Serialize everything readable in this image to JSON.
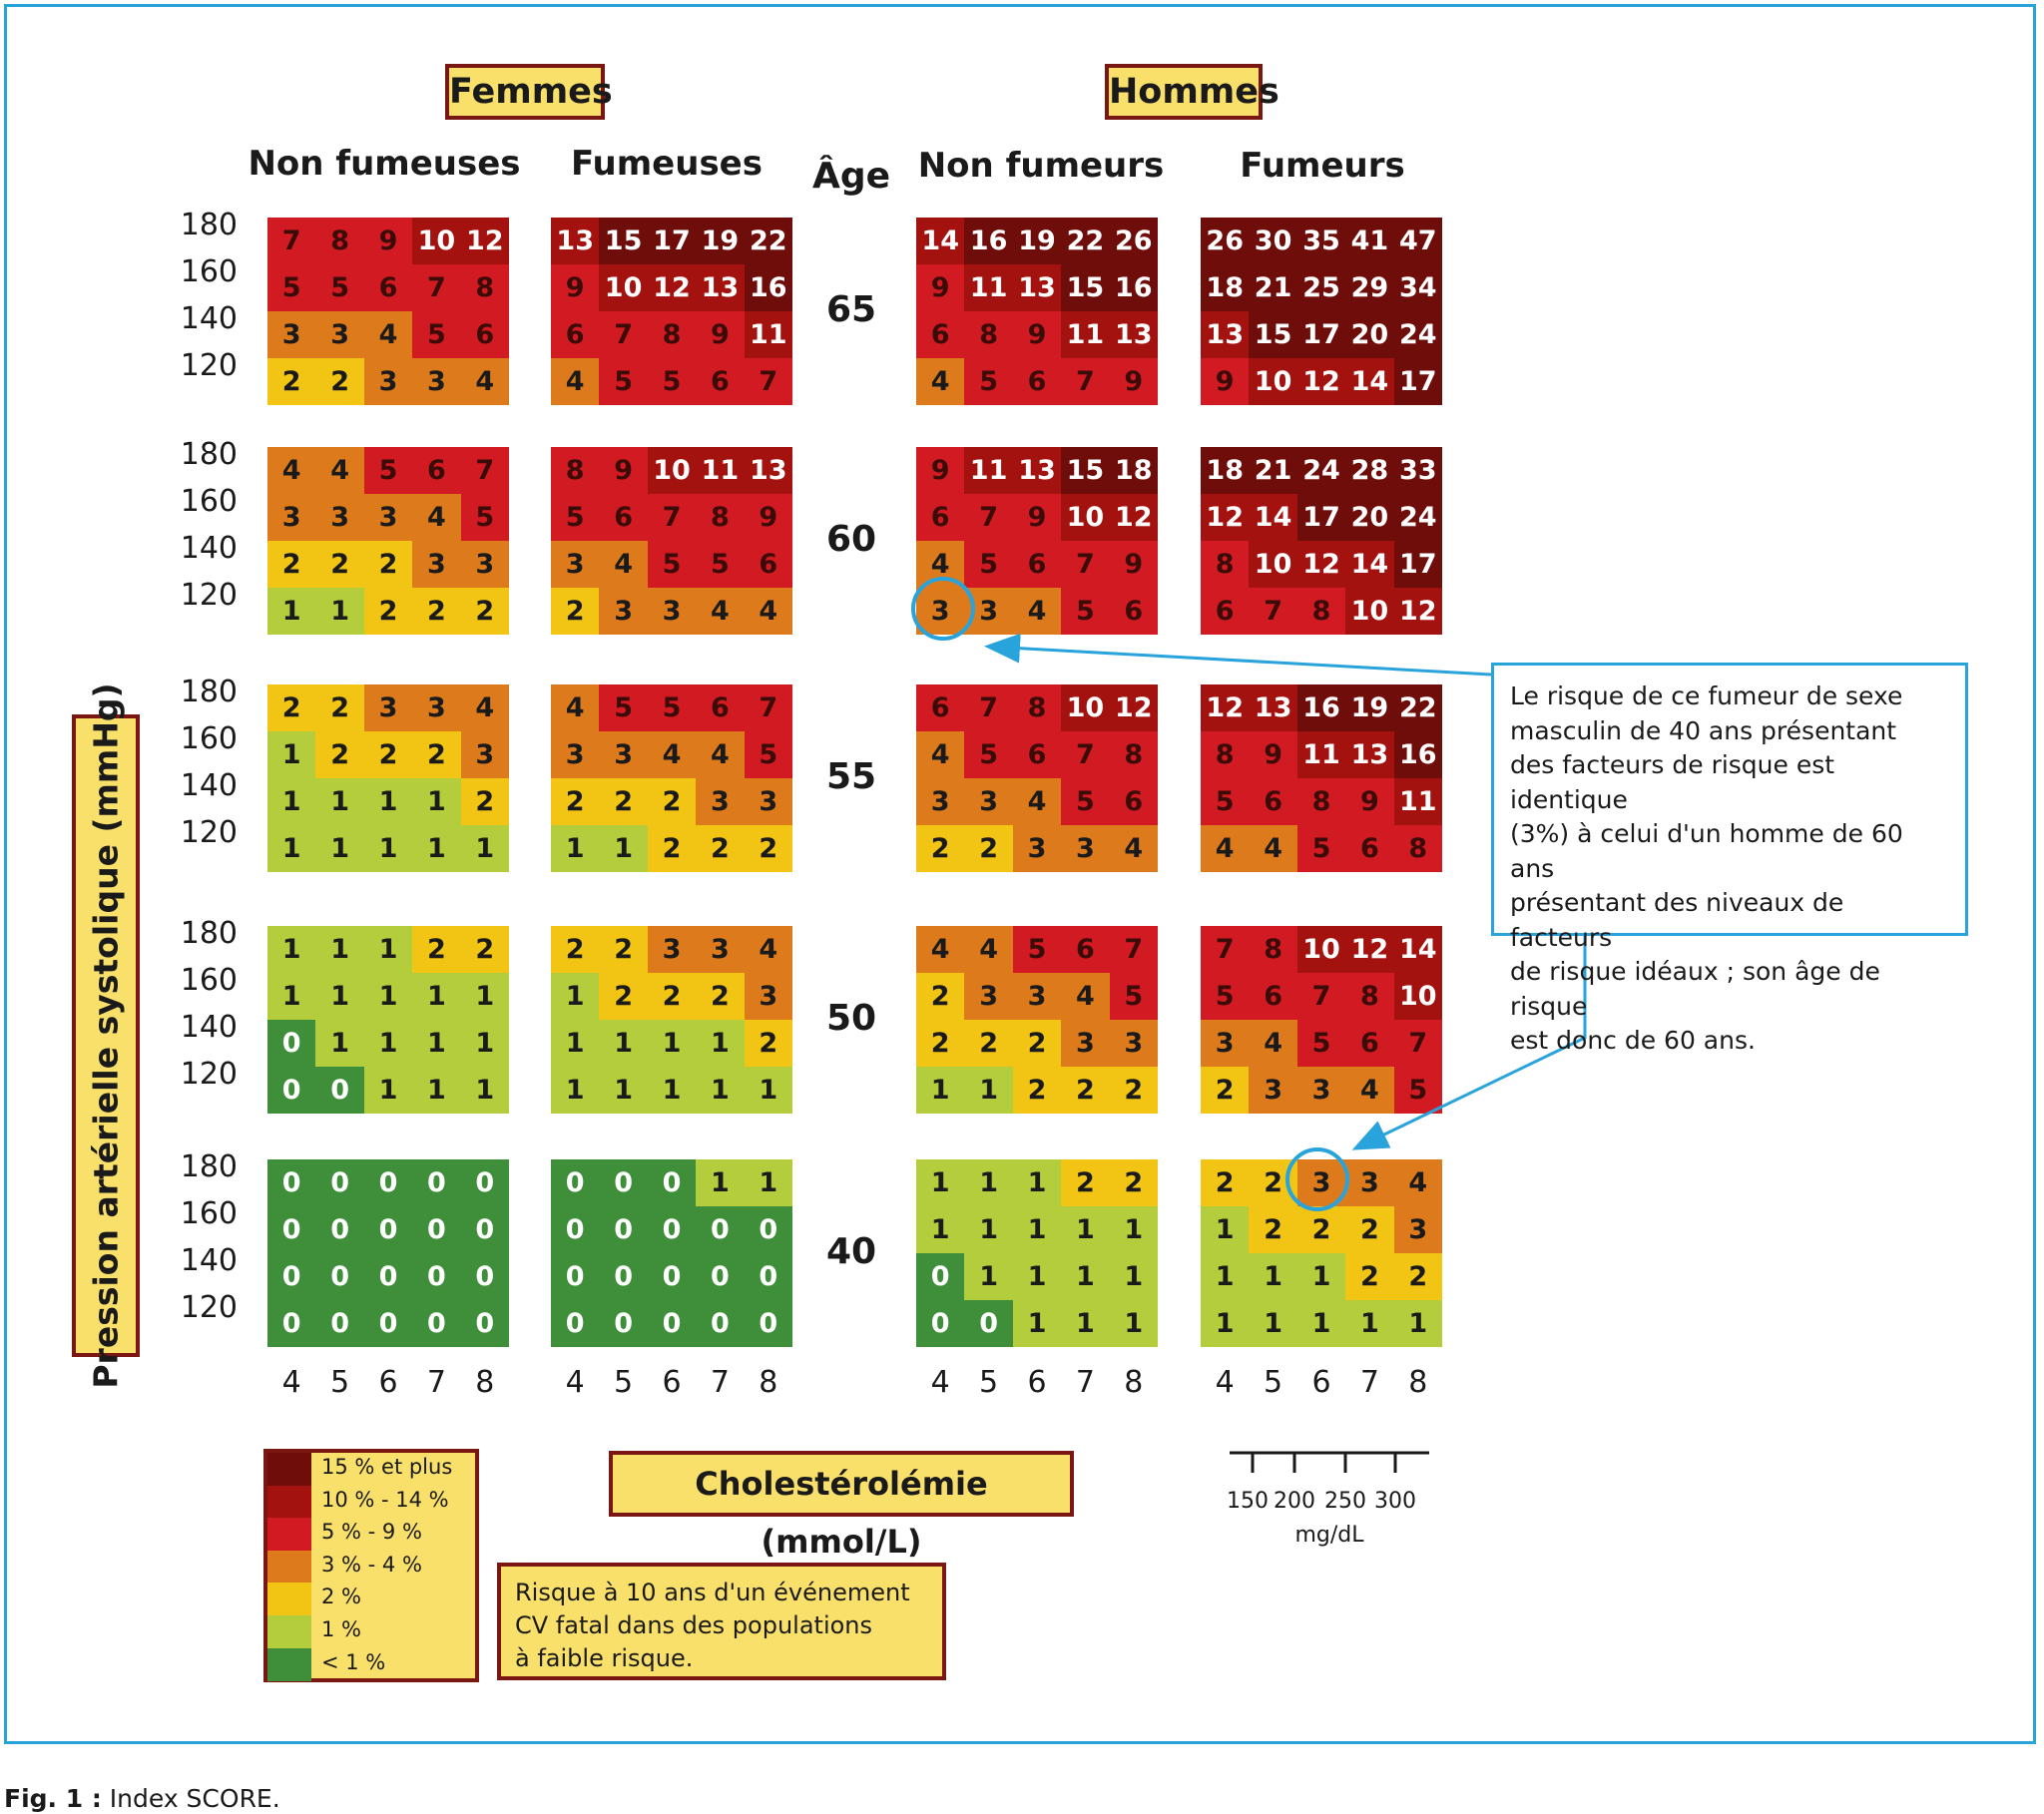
{
  "header": {
    "women": "Femmes",
    "men": "Hommes",
    "age_label": "Âge",
    "columns": [
      "Non fumeuses",
      "Fumeuses",
      "Non fumeurs",
      "Fumeurs"
    ]
  },
  "axes": {
    "y_title": "Pression artérielle systolique (mmHg)",
    "x_title": "Cholestérolémie (mmol/L)",
    "sbp_ticks": [
      "180",
      "160",
      "140",
      "120"
    ],
    "chol_ticks": [
      "4",
      "5",
      "6",
      "7",
      "8"
    ],
    "mgdl_ticks": [
      "150",
      "200",
      "250",
      "300"
    ],
    "mgdl_unit": "mg/dL"
  },
  "legend": {
    "items": [
      {
        "label": "15 % et plus",
        "color": "#6e0d0a"
      },
      {
        "label": "10 % - 14 %",
        "color": "#a3120f"
      },
      {
        "label": "5 % - 9 %",
        "color": "#d11a22"
      },
      {
        "label": "3 % - 4 %",
        "color": "#dd7a1c"
      },
      {
        "label": "2 %",
        "color": "#f2c515"
      },
      {
        "label": "1 %",
        "color": "#b3cd3c"
      },
      {
        "label": "< 1 %",
        "color": "#3f8f3a"
      }
    ]
  },
  "risk_note": [
    "Risque à 10 ans d'un événement",
    "CV fatal dans des populations",
    "à faible risque."
  ],
  "callout": [
    "Le risque de ce fumeur de sexe",
    "masculin de 40 ans présentant",
    "des facteurs de risque est identique",
    "(3%) à celui d'un homme de 60 ans",
    "présentant des niveaux de facteurs",
    "de risque idéaux ; son âge de risque",
    "est donc de 60 ans."
  ],
  "caption": {
    "label": "Fig. 1 :",
    "text": " Index SCORE."
  },
  "colors": {
    "accent": "#29a3dc",
    "box_fill": "#f9e06a",
    "box_border": "#7a1712"
  },
  "chart_data": {
    "type": "heatmap",
    "x": [
      4,
      5,
      6,
      7,
      8
    ],
    "y": [
      180,
      160,
      140,
      120
    ],
    "ages": [
      "65",
      "60",
      "55",
      "50",
      "40"
    ],
    "groups": [
      {
        "name": "Non fumeuses",
        "sex": "Femmes",
        "grids": [
          [
            [
              7,
              8,
              9,
              10,
              12
            ],
            [
              5,
              5,
              6,
              7,
              8
            ],
            [
              3,
              3,
              4,
              5,
              6
            ],
            [
              2,
              2,
              3,
              3,
              4
            ]
          ],
          [
            [
              4,
              4,
              5,
              6,
              7
            ],
            [
              3,
              3,
              3,
              4,
              5
            ],
            [
              2,
              2,
              2,
              3,
              3
            ],
            [
              1,
              1,
              2,
              2,
              2
            ]
          ],
          [
            [
              2,
              2,
              3,
              3,
              4
            ],
            [
              1,
              2,
              2,
              2,
              3
            ],
            [
              1,
              1,
              1,
              1,
              2
            ],
            [
              1,
              1,
              1,
              1,
              1
            ]
          ],
          [
            [
              1,
              1,
              1,
              2,
              2
            ],
            [
              1,
              1,
              1,
              1,
              1
            ],
            [
              0,
              1,
              1,
              1,
              1
            ],
            [
              0,
              0,
              1,
              1,
              1
            ]
          ],
          [
            [
              0,
              0,
              0,
              0,
              0
            ],
            [
              0,
              0,
              0,
              0,
              0
            ],
            [
              0,
              0,
              0,
              0,
              0
            ],
            [
              0,
              0,
              0,
              0,
              0
            ]
          ]
        ]
      },
      {
        "name": "Fumeuses",
        "sex": "Femmes",
        "grids": [
          [
            [
              13,
              15,
              17,
              19,
              22
            ],
            [
              9,
              10,
              12,
              13,
              16
            ],
            [
              6,
              7,
              8,
              9,
              11
            ],
            [
              4,
              5,
              5,
              6,
              7
            ]
          ],
          [
            [
              8,
              9,
              10,
              11,
              13
            ],
            [
              5,
              6,
              7,
              8,
              9
            ],
            [
              3,
              4,
              5,
              5,
              6
            ],
            [
              2,
              3,
              3,
              4,
              4
            ]
          ],
          [
            [
              4,
              5,
              5,
              6,
              7
            ],
            [
              3,
              3,
              4,
              4,
              5
            ],
            [
              2,
              2,
              2,
              3,
              3
            ],
            [
              1,
              1,
              2,
              2,
              2
            ]
          ],
          [
            [
              2,
              2,
              3,
              3,
              4
            ],
            [
              1,
              2,
              2,
              2,
              3
            ],
            [
              1,
              1,
              1,
              1,
              2
            ],
            [
              1,
              1,
              1,
              1,
              1
            ]
          ],
          [
            [
              0,
              0,
              0,
              1,
              1
            ],
            [
              0,
              0,
              0,
              0,
              0
            ],
            [
              0,
              0,
              0,
              0,
              0
            ],
            [
              0,
              0,
              0,
              0,
              0
            ]
          ]
        ]
      },
      {
        "name": "Non fumeurs",
        "sex": "Hommes",
        "grids": [
          [
            [
              14,
              16,
              19,
              22,
              26
            ],
            [
              9,
              11,
              13,
              15,
              16
            ],
            [
              6,
              8,
              9,
              11,
              13
            ],
            [
              4,
              5,
              6,
              7,
              9
            ]
          ],
          [
            [
              9,
              11,
              13,
              15,
              18
            ],
            [
              6,
              7,
              9,
              10,
              12
            ],
            [
              4,
              5,
              6,
              7,
              9
            ],
            [
              3,
              3,
              4,
              5,
              6
            ]
          ],
          [
            [
              6,
              7,
              8,
              10,
              12
            ],
            [
              4,
              5,
              6,
              7,
              8
            ],
            [
              3,
              3,
              4,
              5,
              6
            ],
            [
              2,
              2,
              3,
              3,
              4
            ]
          ],
          [
            [
              4,
              4,
              5,
              6,
              7
            ],
            [
              2,
              3,
              3,
              4,
              5
            ],
            [
              2,
              2,
              2,
              3,
              3
            ],
            [
              1,
              1,
              2,
              2,
              2
            ]
          ],
          [
            [
              1,
              1,
              1,
              2,
              2
            ],
            [
              1,
              1,
              1,
              1,
              1
            ],
            [
              0,
              1,
              1,
              1,
              1
            ],
            [
              0,
              0,
              1,
              1,
              1
            ]
          ]
        ]
      },
      {
        "name": "Fumeurs",
        "sex": "Hommes",
        "grids": [
          [
            [
              26,
              30,
              35,
              41,
              47
            ],
            [
              18,
              21,
              25,
              29,
              34
            ],
            [
              13,
              15,
              17,
              20,
              24
            ],
            [
              9,
              10,
              12,
              14,
              17
            ]
          ],
          [
            [
              18,
              21,
              24,
              28,
              33
            ],
            [
              12,
              14,
              17,
              20,
              24
            ],
            [
              8,
              10,
              12,
              14,
              17
            ],
            [
              6,
              7,
              8,
              10,
              12
            ]
          ],
          [
            [
              12,
              13,
              16,
              19,
              22
            ],
            [
              8,
              9,
              11,
              13,
              16
            ],
            [
              5,
              6,
              8,
              9,
              11
            ],
            [
              4,
              4,
              5,
              6,
              8
            ]
          ],
          [
            [
              7,
              8,
              10,
              12,
              14
            ],
            [
              5,
              6,
              7,
              8,
              10
            ],
            [
              3,
              4,
              5,
              6,
              7
            ],
            [
              2,
              3,
              3,
              4,
              5
            ]
          ],
          [
            [
              2,
              2,
              3,
              3,
              4
            ],
            [
              1,
              2,
              2,
              2,
              3
            ],
            [
              1,
              1,
              1,
              2,
              2
            ],
            [
              1,
              1,
              1,
              1,
              1
            ]
          ]
        ]
      }
    ]
  }
}
